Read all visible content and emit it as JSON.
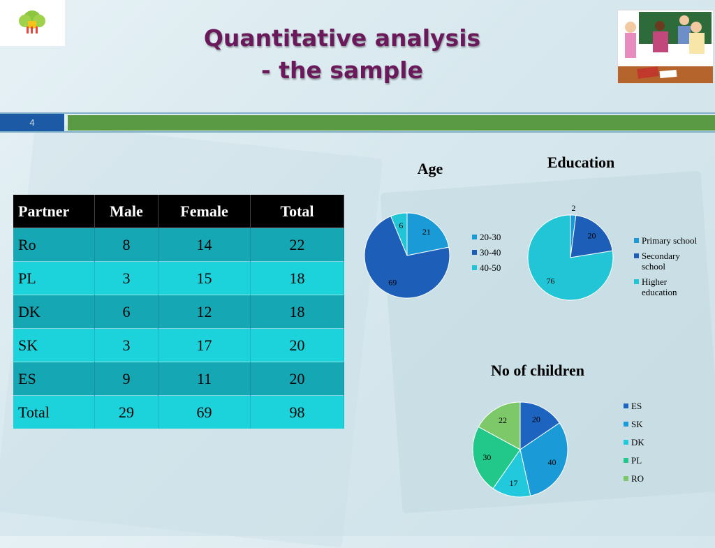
{
  "slide": {
    "title_line1": "Quantitative analysis",
    "title_line2": "- the  sample",
    "slide_number": "4"
  },
  "table": {
    "headers": [
      "Partner",
      "Male",
      "Female",
      "Total"
    ],
    "rows": [
      [
        "Ro",
        "8",
        "14",
        "22"
      ],
      [
        "PL",
        "3",
        "15",
        "18"
      ],
      [
        "DK",
        "6",
        "12",
        "18"
      ],
      [
        "SK",
        "3",
        "17",
        "20"
      ],
      [
        "ES",
        "9",
        "11",
        "20"
      ],
      [
        "Total",
        "29",
        "69",
        "98"
      ]
    ]
  },
  "colors": {
    "title": "#6a1a5a",
    "table_dark": "#16a7b4",
    "table_light": "#1cd3dc"
  },
  "chart_data": [
    {
      "type": "pie",
      "title": "Age",
      "labels": [
        "20-30",
        "30-40",
        "40-50"
      ],
      "values": [
        21,
        69,
        6
      ],
      "colors": [
        "#1a9ad6",
        "#1d5fb8",
        "#22c5d6"
      ],
      "legend_position": "right"
    },
    {
      "type": "pie",
      "title": "Education",
      "labels": [
        "Primary school",
        "Secondary school",
        "Higher education"
      ],
      "values": [
        2,
        20,
        76
      ],
      "colors": [
        "#1a9ad6",
        "#1d5fb8",
        "#22c5d6"
      ],
      "legend_position": "right"
    },
    {
      "type": "pie",
      "title": "No of children",
      "labels": [
        "ES",
        "SK",
        "DK",
        "PL",
        "RO"
      ],
      "values": [
        20,
        40,
        17,
        30,
        22
      ],
      "colors": [
        "#1d63c0",
        "#1a9ad6",
        "#22c8dc",
        "#21c88a",
        "#7dc96a"
      ],
      "legend_position": "right"
    }
  ]
}
